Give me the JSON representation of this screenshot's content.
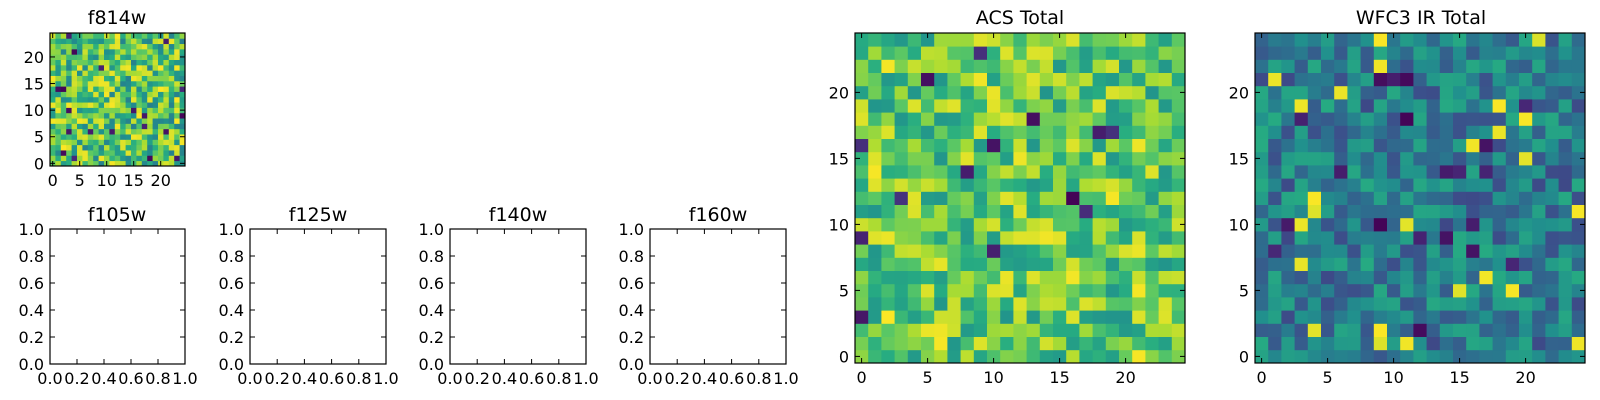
{
  "chart_data": [
    {
      "type": "heatmap",
      "id": "f814w",
      "title": "f814w",
      "grid_size": 25,
      "xticks": [
        "0",
        "5",
        "10",
        "15",
        "20"
      ],
      "yticks": [
        "0",
        "5",
        "10",
        "15",
        "20"
      ],
      "xlim": [
        -0.5,
        24.5
      ],
      "ylim": [
        -0.5,
        24.5
      ],
      "colormap": "viridis",
      "seed": 814,
      "mean": 0.72,
      "spread": 0.28,
      "values_note": ""
    },
    {
      "type": "heatmap",
      "id": "f105w",
      "title": "f105w",
      "empty": true,
      "xticks": [
        "0.0",
        "0.2",
        "0.4",
        "0.6",
        "0.8",
        "1.0"
      ],
      "yticks": [
        "0.0",
        "0.2",
        "0.4",
        "0.6",
        "0.8",
        "1.0"
      ],
      "xlim": [
        0,
        1
      ],
      "ylim": [
        0,
        1
      ]
    },
    {
      "type": "heatmap",
      "id": "f125w",
      "title": "f125w",
      "empty": true,
      "xticks": [
        "0.0",
        "0.2",
        "0.4",
        "0.6",
        "0.8",
        "1.0"
      ],
      "yticks": [
        "0.0",
        "0.2",
        "0.4",
        "0.6",
        "0.8",
        "1.0"
      ],
      "xlim": [
        0,
        1
      ],
      "ylim": [
        0,
        1
      ]
    },
    {
      "type": "heatmap",
      "id": "f140w",
      "title": "f140w",
      "empty": true,
      "xticks": [
        "0.0",
        "0.2",
        "0.4",
        "0.6",
        "0.8",
        "1.0"
      ],
      "yticks": [
        "0.0",
        "0.2",
        "0.4",
        "0.6",
        "0.8",
        "1.0"
      ],
      "xlim": [
        0,
        1
      ],
      "ylim": [
        0,
        1
      ]
    },
    {
      "type": "heatmap",
      "id": "f160w",
      "title": "f160w",
      "empty": true,
      "xticks": [
        "0.0",
        "0.2",
        "0.4",
        "0.6",
        "0.8",
        "1.0"
      ],
      "yticks": [
        "0.0",
        "0.2",
        "0.4",
        "0.6",
        "0.8",
        "1.0"
      ],
      "xlim": [
        0,
        1
      ],
      "ylim": [
        0,
        1
      ]
    },
    {
      "type": "heatmap",
      "id": "acs-total",
      "title": "ACS Total",
      "grid_size": 25,
      "xticks": [
        "0",
        "5",
        "10",
        "15",
        "20"
      ],
      "yticks": [
        "0",
        "5",
        "10",
        "15",
        "20"
      ],
      "xlim": [
        -0.5,
        24.5
      ],
      "ylim": [
        -0.5,
        24.5
      ],
      "colormap": "viridis",
      "seed": 1234,
      "mean": 0.74,
      "spread": 0.22
    },
    {
      "type": "heatmap",
      "id": "wfc3-ir-total",
      "title": "WFC3 IR Total",
      "grid_size": 25,
      "xticks": [
        "0",
        "5",
        "10",
        "15",
        "20"
      ],
      "yticks": [
        "0",
        "5",
        "10",
        "15",
        "20"
      ],
      "xlim": [
        -0.5,
        24.5
      ],
      "ylim": [
        -0.5,
        24.5
      ],
      "colormap": "viridis",
      "seed": 4321,
      "mean": 0.42,
      "spread": 0.2
    }
  ]
}
